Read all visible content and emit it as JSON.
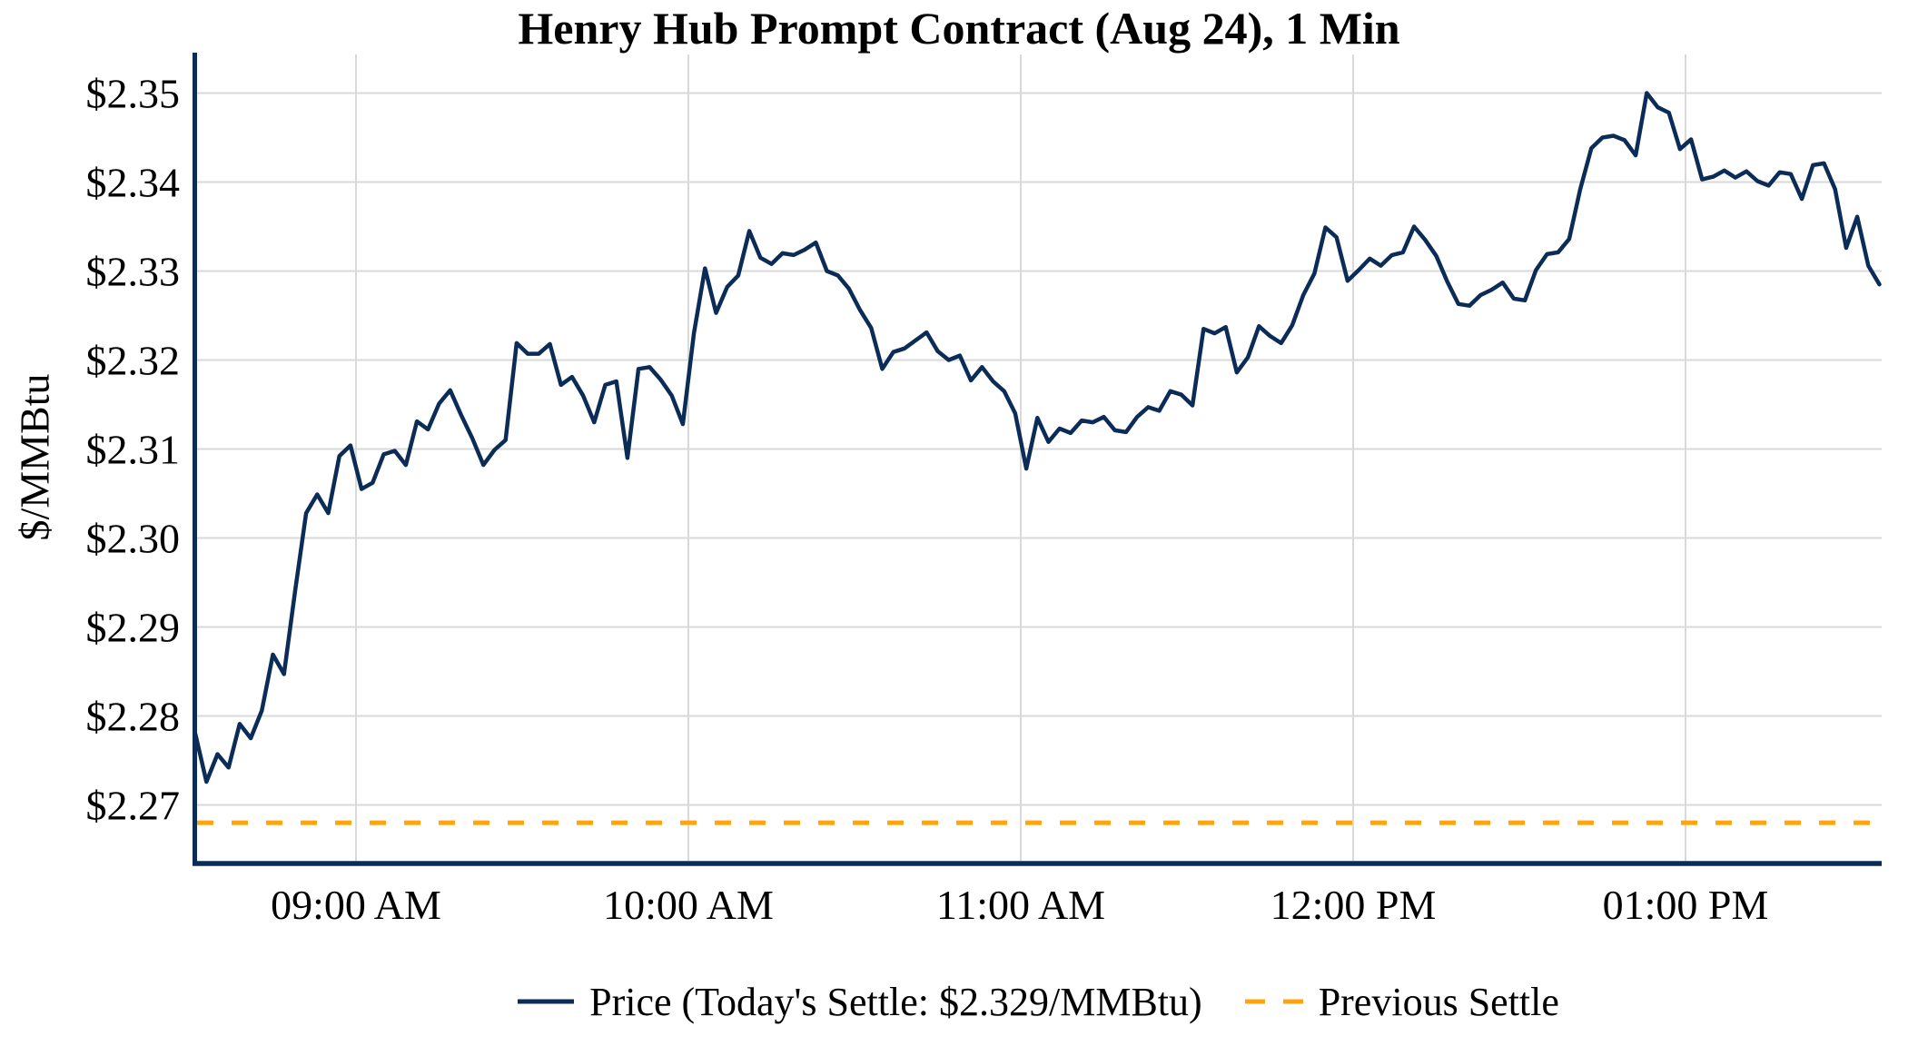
{
  "chart": {
    "title": "Henry Hub Prompt Contract (Aug 24), 1 Min",
    "y_axis_title": "$/MMBtu"
  },
  "colors": {
    "price_line": "#0c2c58",
    "previous_settle_line": "#ffa40e",
    "gridline": "#d9d9d9",
    "axis": "#0c2c58",
    "text": "#000000",
    "background": "#ffffff"
  },
  "chart_data": {
    "type": "line",
    "title": "Henry Hub Prompt Contract (Aug 24), 1 Min",
    "xlabel": "",
    "ylabel": "$/MMBtu",
    "grid": true,
    "legend_position": "bottom-center",
    "x_tick_labels": [
      "09:00 AM",
      "10:00 AM",
      "11:00 AM",
      "12:00 PM",
      "01:00 PM"
    ],
    "x_tick_times": [
      "09:00",
      "10:00",
      "11:00",
      "12:00",
      "13:00"
    ],
    "y_tick_labels": [
      "$2.27",
      "$2.28",
      "$2.29",
      "$2.30",
      "$2.31",
      "$2.32",
      "$2.33",
      "$2.34",
      "$2.35"
    ],
    "y_tick_values": [
      2.27,
      2.28,
      2.29,
      2.3,
      2.31,
      2.32,
      2.33,
      2.34,
      2.35
    ],
    "ylim": [
      2.2634,
      2.3544
    ],
    "xlim_times": [
      "08:31",
      "13:35"
    ],
    "today_settle": 2.329,
    "previous_settle": 2.268,
    "series": [
      {
        "name": "Price (Today's Settle: $2.329/MMBtu)",
        "style": "solid",
        "times": [
          "08:31",
          "08:33",
          "08:35",
          "08:37",
          "08:39",
          "08:41",
          "08:43",
          "08:45",
          "08:47",
          "08:49",
          "08:51",
          "08:53",
          "08:55",
          "08:57",
          "08:59",
          "09:01",
          "09:03",
          "09:05",
          "09:07",
          "09:09",
          "09:11",
          "09:13",
          "09:15",
          "09:17",
          "09:19",
          "09:21",
          "09:23",
          "09:25",
          "09:27",
          "09:29",
          "09:31",
          "09:33",
          "09:35",
          "09:37",
          "09:39",
          "09:41",
          "09:43",
          "09:45",
          "09:47",
          "09:49",
          "09:51",
          "09:53",
          "09:55",
          "09:57",
          "09:59",
          "10:01",
          "10:03",
          "10:05",
          "10:07",
          "10:09",
          "10:11",
          "10:13",
          "10:15",
          "10:17",
          "10:19",
          "10:21",
          "10:23",
          "10:25",
          "10:27",
          "10:29",
          "10:31",
          "10:33",
          "10:35",
          "10:37",
          "10:39",
          "10:41",
          "10:43",
          "10:45",
          "10:47",
          "10:49",
          "10:51",
          "10:53",
          "10:55",
          "10:57",
          "10:59",
          "11:01",
          "11:03",
          "11:05",
          "11:07",
          "11:09",
          "11:11",
          "11:13",
          "11:15",
          "11:17",
          "11:19",
          "11:21",
          "11:23",
          "11:25",
          "11:27",
          "11:29",
          "11:31",
          "11:33",
          "11:35",
          "11:37",
          "11:39",
          "11:41",
          "11:43",
          "11:45",
          "11:47",
          "11:49",
          "11:51",
          "11:53",
          "11:55",
          "11:57",
          "11:59",
          "12:01",
          "12:03",
          "12:05",
          "12:07",
          "12:09",
          "12:11",
          "12:13",
          "12:15",
          "12:17",
          "12:19",
          "12:21",
          "12:23",
          "12:25",
          "12:27",
          "12:29",
          "12:31",
          "12:33",
          "12:35",
          "12:37",
          "12:39",
          "12:41",
          "12:43",
          "12:45",
          "12:47",
          "12:49",
          "12:51",
          "12:53",
          "12:55",
          "12:57",
          "12:59",
          "13:01",
          "13:03",
          "13:05",
          "13:07",
          "13:09",
          "13:11",
          "13:13",
          "13:15",
          "13:17",
          "13:19",
          "13:21",
          "13:23",
          "13:25",
          "13:27",
          "13:29",
          "13:31",
          "13:33",
          "13:35"
        ],
        "values": [
          2.278,
          2.2726,
          2.2757,
          2.2742,
          2.2791,
          2.2775,
          2.2806,
          2.2869,
          2.2847,
          2.294,
          2.3028,
          2.3049,
          2.3028,
          2.3092,
          2.3104,
          2.3055,
          2.3062,
          2.3094,
          2.3098,
          2.3082,
          2.3131,
          2.3122,
          2.3151,
          2.3166,
          2.3138,
          2.3112,
          2.3082,
          2.3099,
          2.311,
          2.3219,
          2.3207,
          2.3207,
          2.3218,
          2.3172,
          2.3181,
          2.316,
          2.313,
          2.3172,
          2.3176,
          2.309,
          2.319,
          2.3192,
          2.3178,
          2.316,
          2.3128,
          2.323,
          2.3303,
          2.3253,
          2.3282,
          2.3295,
          2.3345,
          2.3315,
          2.3308,
          2.332,
          2.3318,
          2.3324,
          2.3332,
          2.33,
          2.3295,
          2.328,
          2.3256,
          2.3236,
          2.319,
          2.3209,
          2.3213,
          2.3222,
          2.3231,
          2.321,
          2.32,
          2.3205,
          2.3177,
          2.3192,
          2.3176,
          2.3165,
          2.314,
          2.3078,
          2.3135,
          2.3108,
          2.3123,
          2.3118,
          2.3132,
          2.313,
          2.3136,
          2.3121,
          2.3119,
          2.3136,
          2.3147,
          2.3143,
          2.3165,
          2.3161,
          2.3149,
          2.3235,
          2.323,
          2.3237,
          2.3186,
          2.3203,
          2.3238,
          2.3227,
          2.3219,
          2.3239,
          2.3273,
          2.3297,
          2.3349,
          2.3338,
          2.3289,
          2.3301,
          2.3314,
          2.3306,
          2.3318,
          2.3321,
          2.335,
          2.3335,
          2.3317,
          2.3288,
          2.3263,
          2.3261,
          2.3273,
          2.3279,
          2.3287,
          2.3269,
          2.3267,
          2.3301,
          2.3319,
          2.3321,
          2.3336,
          2.3392,
          2.3438,
          2.345,
          2.3452,
          2.3447,
          2.343,
          2.35,
          2.3484,
          2.3478,
          2.3437,
          2.3448,
          2.3403,
          2.3406,
          2.3413,
          2.3405,
          2.3412,
          2.3401,
          2.3396,
          2.3411,
          2.3409,
          2.3381,
          2.3419,
          2.3421,
          2.3392,
          2.3326,
          2.3361,
          2.3306,
          2.3285
        ]
      },
      {
        "name": "Previous Settle",
        "style": "dashed",
        "value": 2.268
      }
    ]
  }
}
